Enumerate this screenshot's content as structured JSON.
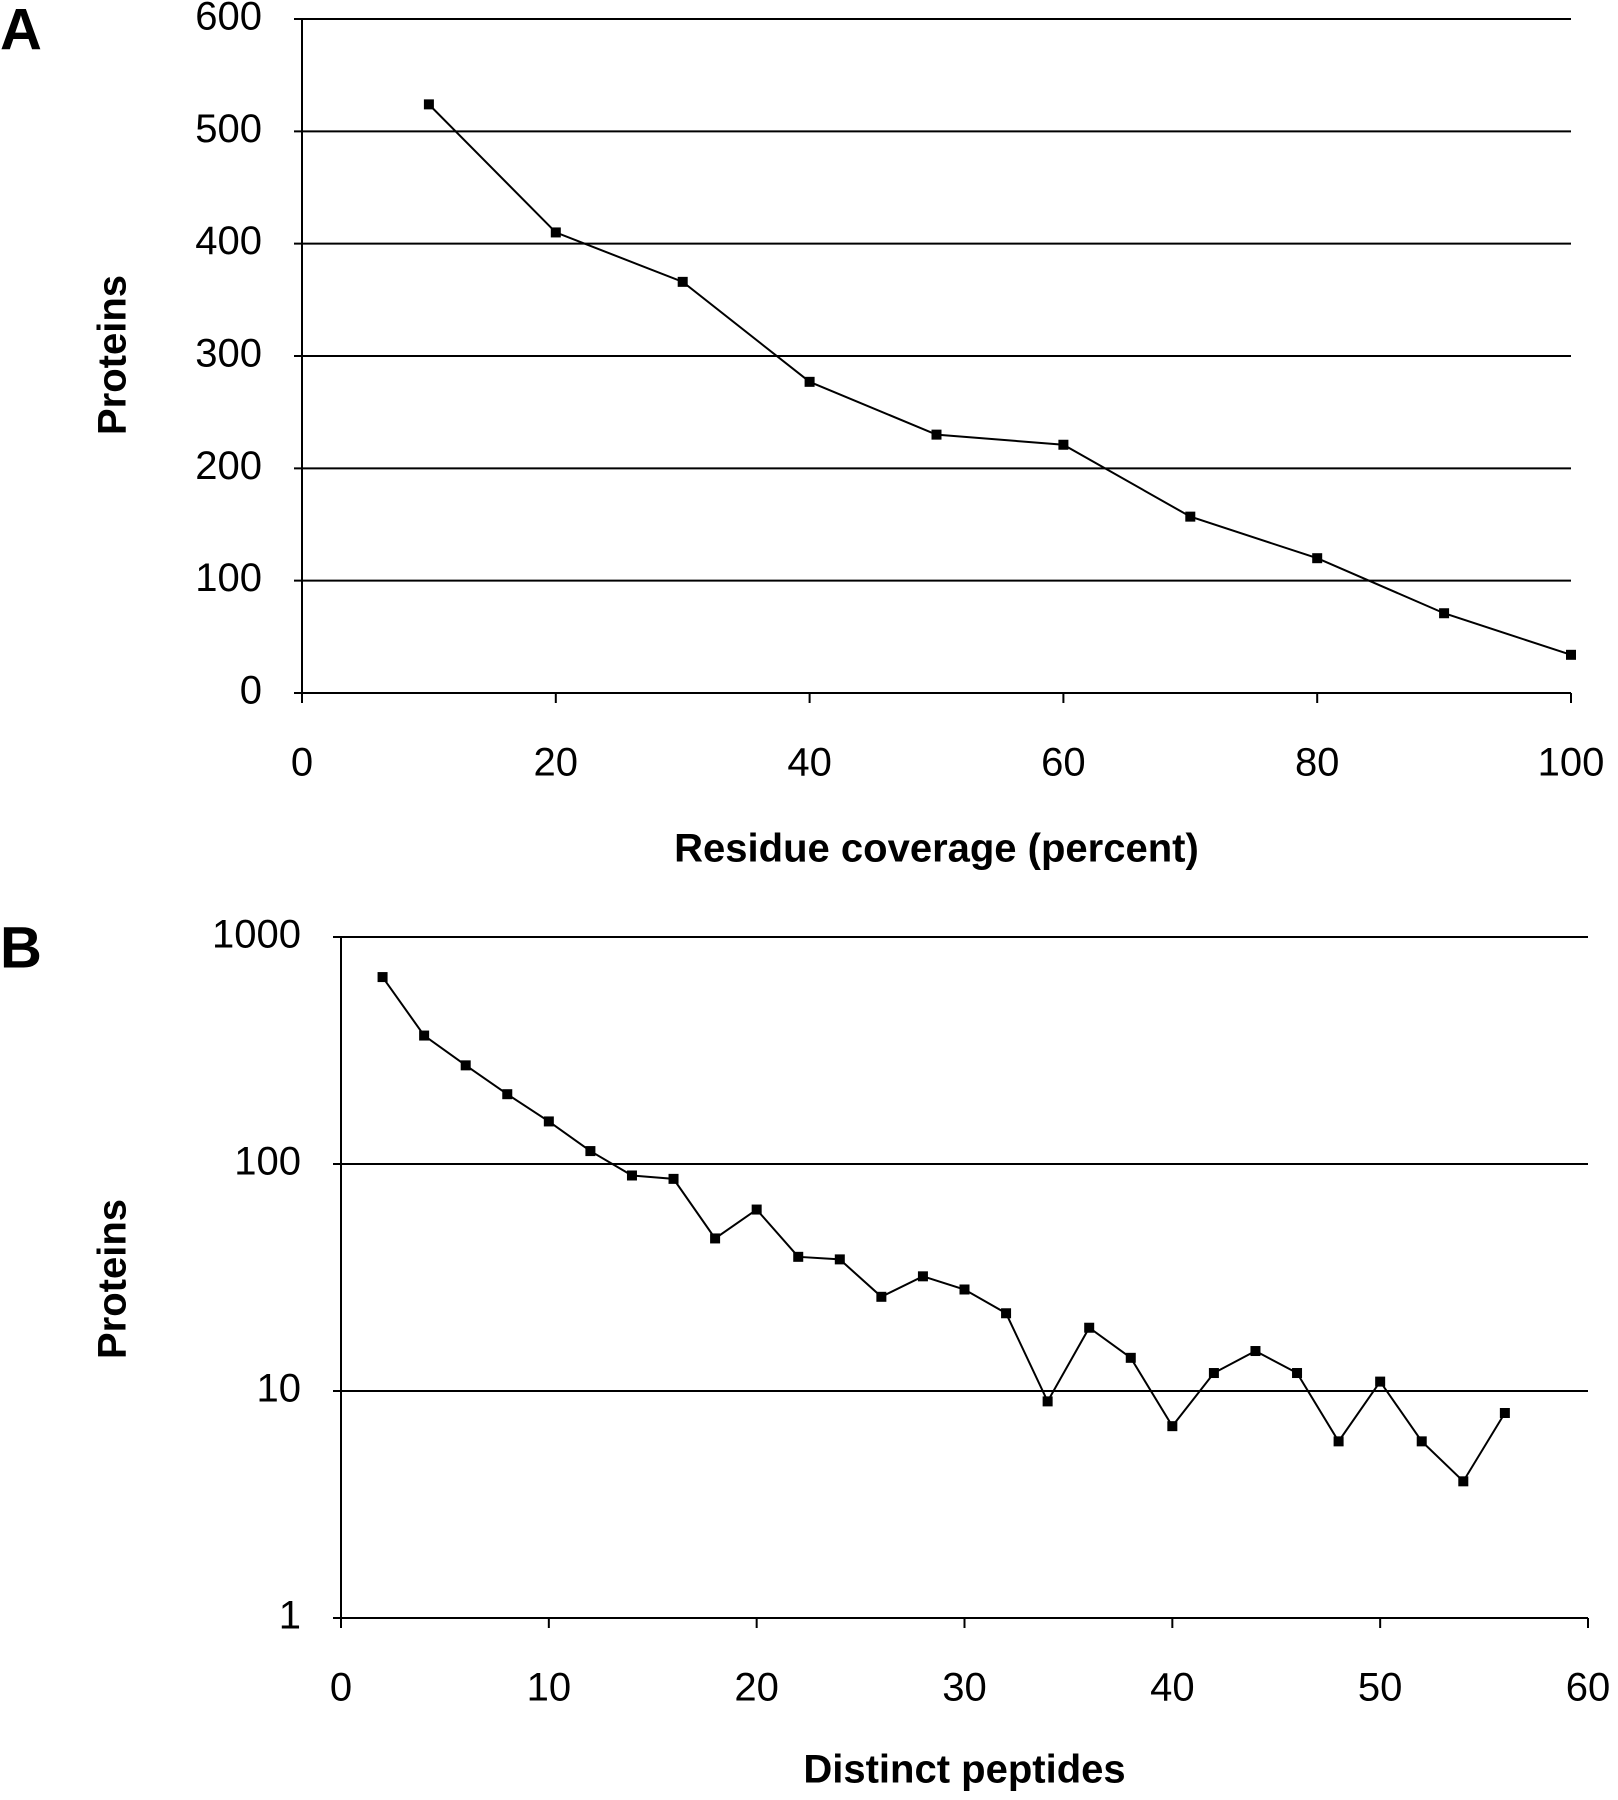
{
  "chart_data": [
    {
      "type": "line",
      "panel_label": "A",
      "xlabel": "Residue coverage (percent)",
      "ylabel": "Proteins",
      "x": [
        10,
        20,
        30,
        40,
        50,
        60,
        70,
        80,
        90,
        100
      ],
      "values": [
        524,
        410,
        366,
        277,
        230,
        221,
        157,
        120,
        71,
        34
      ],
      "color": "#000000",
      "xlim": [
        0,
        100
      ],
      "xticks": [
        0,
        20,
        40,
        60,
        80,
        100
      ],
      "ylim": [
        0,
        600
      ],
      "yticks": [
        0,
        100,
        200,
        300,
        400,
        500,
        600
      ],
      "log_y": false,
      "grid": true
    },
    {
      "type": "line",
      "panel_label": "B",
      "xlabel": "Distinct peptides",
      "ylabel": "Proteins",
      "x": [
        2,
        4,
        6,
        8,
        10,
        12,
        14,
        16,
        18,
        20,
        22,
        24,
        26,
        28,
        30,
        32,
        34,
        36,
        38,
        40,
        42,
        44,
        46,
        48,
        50,
        52,
        54,
        56
      ],
      "values": [
        666,
        368,
        272,
        203,
        154,
        114,
        89,
        86,
        47,
        63,
        39,
        38,
        26,
        32,
        28,
        22,
        9,
        19,
        14,
        7,
        12,
        15,
        12,
        6,
        11,
        6,
        4,
        8
      ],
      "color": "#000000",
      "xlim": [
        0,
        60
      ],
      "xticks": [
        0,
        10,
        20,
        30,
        40,
        50,
        60
      ],
      "ylim": [
        1,
        1000
      ],
      "yticks": [
        1,
        10,
        100,
        1000
      ],
      "log_y": true,
      "grid": true
    }
  ]
}
